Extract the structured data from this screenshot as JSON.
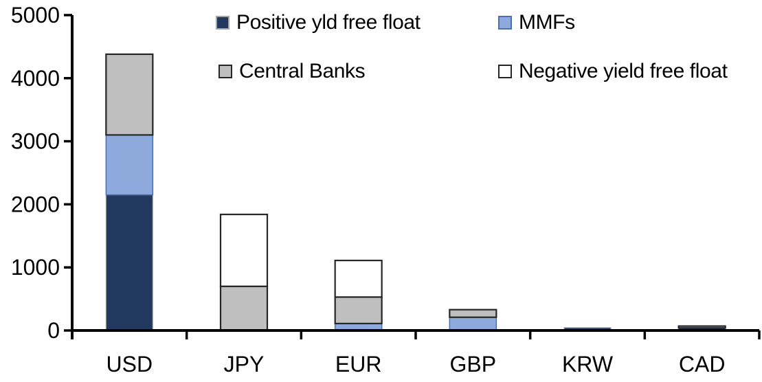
{
  "chart_data": {
    "type": "bar",
    "stacked": true,
    "title": "",
    "xlabel": "",
    "ylabel": "",
    "categories": [
      "USD",
      "JPY",
      "EUR",
      "GBP",
      "KRW",
      "CAD"
    ],
    "series": [
      {
        "name": "Positive yld free float",
        "color": "#21395F",
        "border": "#A6A6A6",
        "border_width": 1.2,
        "values": [
          2150,
          0,
          0,
          0,
          45,
          40
        ]
      },
      {
        "name": "MMFs",
        "color": "#8EAADC",
        "border": "#4C6FAF",
        "border_width": 1.5,
        "values": [
          950,
          0,
          110,
          210,
          0,
          0
        ]
      },
      {
        "name": "Central Banks",
        "color": "#BFBFBF",
        "border": "#262626",
        "border_width": 2.2,
        "values": [
          1280,
          700,
          420,
          120,
          0,
          30
        ]
      },
      {
        "name": "Negative yield free float",
        "color": "#FFFFFF",
        "border": "#262626",
        "border_width": 2.2,
        "values": [
          0,
          1140,
          580,
          0,
          0,
          0
        ]
      }
    ],
    "totals": [
      4380,
      1840,
      1110,
      330,
      45,
      70
    ],
    "ylim": [
      0,
      5000
    ],
    "yticks": [
      0,
      1000,
      2000,
      3000,
      4000,
      5000
    ],
    "axis_color": "#000000",
    "grid": false,
    "legend_position": "top"
  }
}
